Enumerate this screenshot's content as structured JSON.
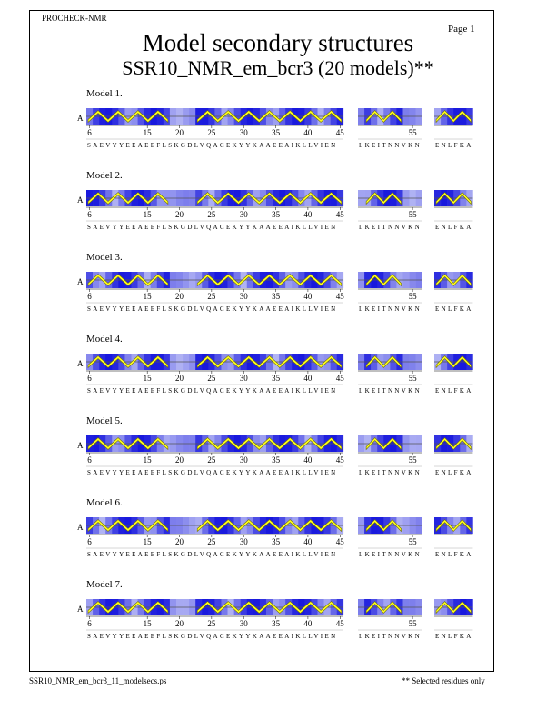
{
  "header": {
    "program": "PROCHECK-NMR",
    "page": "Page  1"
  },
  "title": "Model secondary structures",
  "subtitle": "SSR10_NMR_em_bcr3 (20 models)**",
  "footer": {
    "file": "SSR10_NMR_em_bcr3_11_modelsecs.ps",
    "note": "** Selected residues only"
  },
  "chain": "A",
  "colors": {
    "helix_fill": "#ffff22",
    "helix_stroke": "#707000",
    "shade_dark": "#1818dd",
    "shade_light": "#e6e9fb"
  },
  "segments": [
    {
      "id": "seg1",
      "residues": "SAEVYYEEAEEFLSKGDLVQACEKYYKAAEEAIKLLVIEN",
      "start": 6,
      "ticks": [
        "6",
        "15",
        "20",
        "25",
        "30",
        "35",
        "40",
        "45"
      ]
    },
    {
      "id": "seg2",
      "residues": "LKEITNNVKN",
      "start": 47,
      "ticks": [
        "55"
      ]
    },
    {
      "id": "seg3",
      "residues": "ENLFKA",
      "start": 60,
      "ticks": []
    }
  ],
  "models": [
    {
      "label": "Model  1."
    },
    {
      "label": "Model  2."
    },
    {
      "label": "Model  3."
    },
    {
      "label": "Model  4."
    },
    {
      "label": "Model  5."
    },
    {
      "label": "Model  6."
    },
    {
      "label": "Model  7."
    }
  ]
}
